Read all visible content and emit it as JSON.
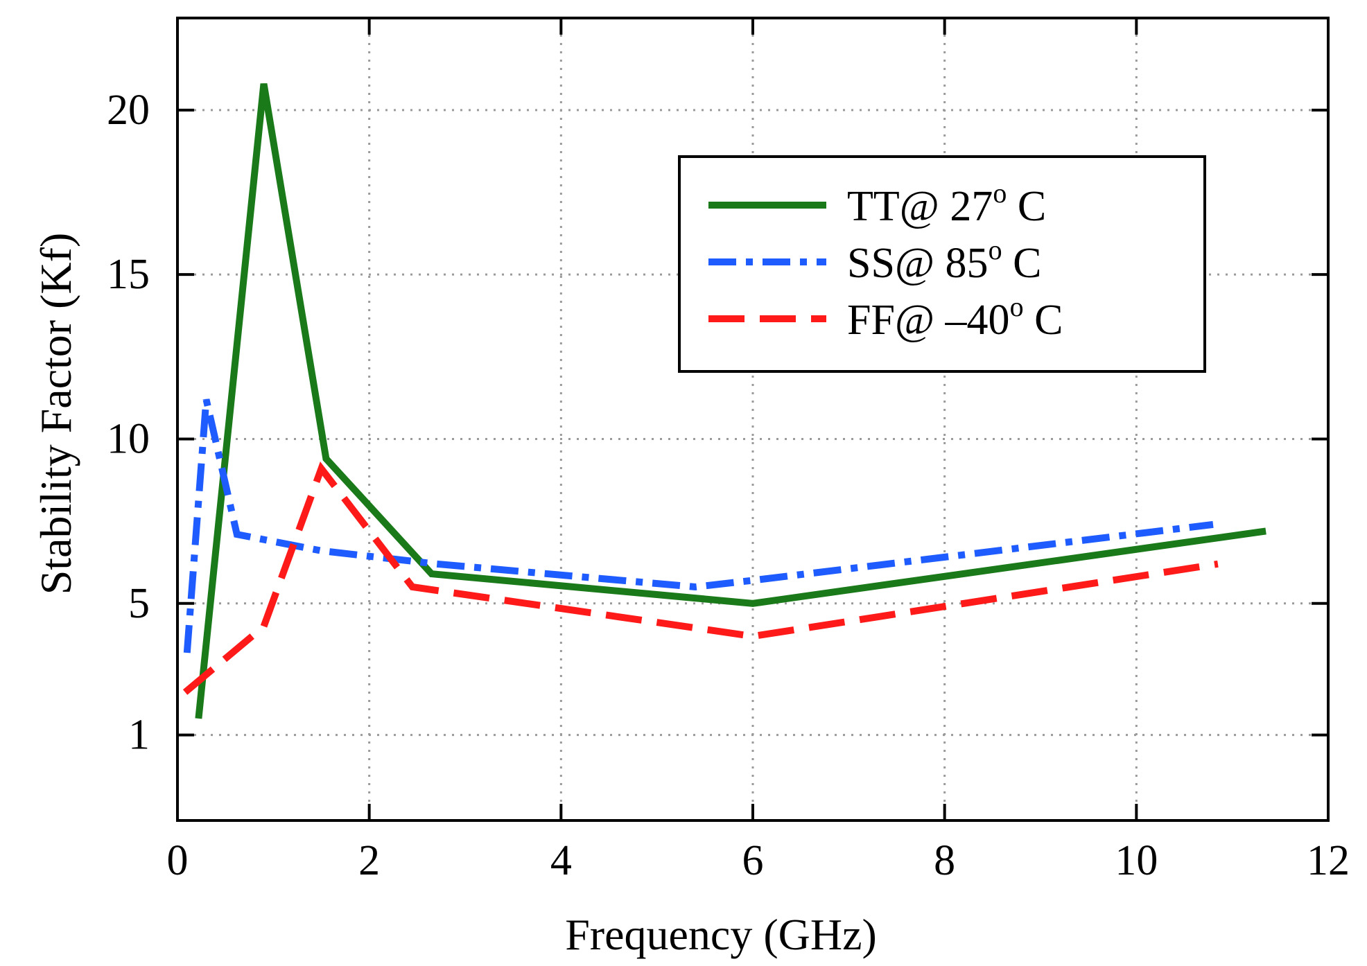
{
  "chart_data": {
    "type": "line",
    "title": "",
    "xlabel": "Frequency (GHz)",
    "ylabel": "Stability Factor (Kf)",
    "xlim": [
      0,
      12
    ],
    "ylim": [
      -1.6,
      22.8
    ],
    "xticks": [
      0,
      2,
      4,
      6,
      8,
      10,
      12
    ],
    "yticks": [
      1,
      5,
      10,
      15,
      20
    ],
    "xtick_labels": [
      "0",
      "2",
      "4",
      "6",
      "8",
      "10",
      "12"
    ],
    "ytick_labels": [
      "1",
      "5",
      "10",
      "15",
      "20"
    ],
    "grid": true,
    "legend_position": "upper-right",
    "series": [
      {
        "name": "TT@ 27° C",
        "label_parts": [
          "TT@ 27",
          "o",
          " C"
        ],
        "color": "#1a7a1a",
        "style": "solid",
        "x": [
          0.22,
          0.9,
          1.55,
          2.65,
          6.0,
          11.35
        ],
        "y": [
          1.5,
          20.8,
          9.4,
          5.9,
          5.0,
          7.2
        ]
      },
      {
        "name": "SS@ 85° C",
        "label_parts": [
          "SS@ 85",
          "o",
          " C"
        ],
        "color": "#1f5cff",
        "style": "dashdot",
        "x": [
          0.1,
          0.3,
          0.62,
          1.5,
          2.7,
          5.4,
          6.0,
          10.8
        ],
        "y": [
          3.5,
          11.2,
          7.1,
          6.6,
          6.2,
          5.5,
          5.7,
          7.4
        ]
      },
      {
        "name": "FF@ –40° C",
        "label_parts": [
          "FF@ –40",
          "o",
          " C"
        ],
        "color": "#ff1a1a",
        "style": "dashed",
        "x": [
          0.08,
          0.9,
          1.5,
          2.45,
          6.0,
          10.85
        ],
        "y": [
          2.3,
          4.3,
          9.1,
          5.5,
          4.0,
          6.2
        ]
      }
    ]
  }
}
